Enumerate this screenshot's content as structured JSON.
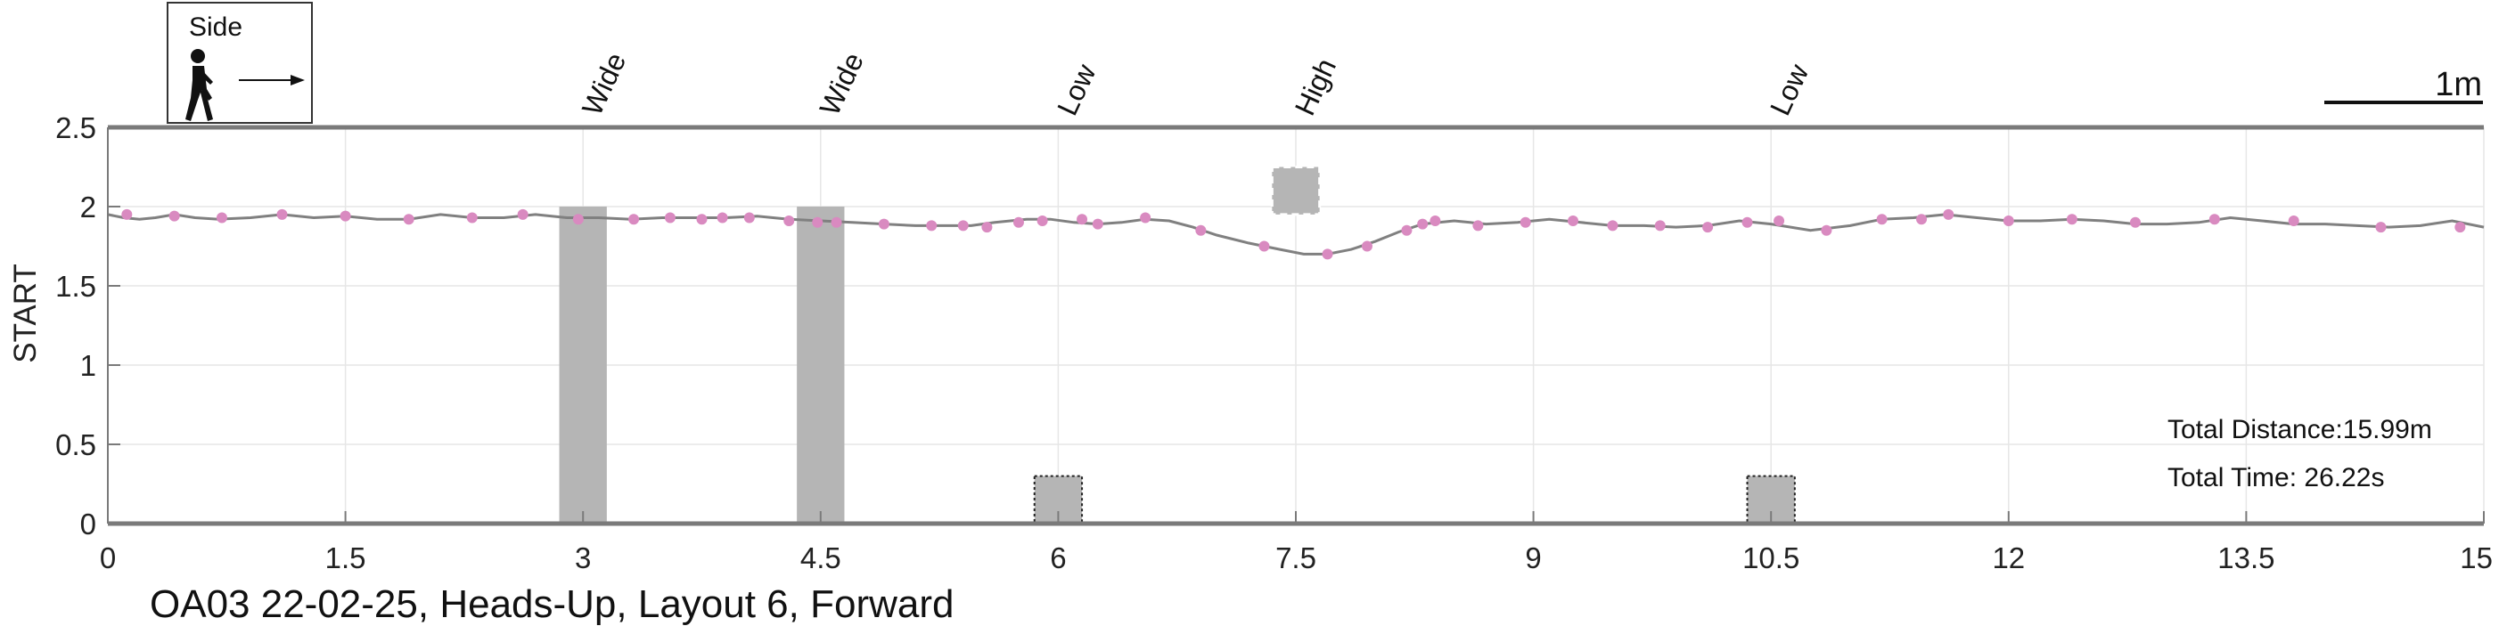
{
  "chart_data": {
    "type": "line",
    "caption": "OA03 22-02-25, Heads-Up, Layout 6, Forward",
    "ylabel": "START",
    "xlim": [
      0,
      15
    ],
    "ylim": [
      0,
      2.5
    ],
    "xticks": [
      0,
      1.5,
      3,
      4.5,
      6,
      7.5,
      9,
      10.5,
      12,
      13.5,
      15
    ],
    "yticks": [
      0,
      0.5,
      1,
      1.5,
      2,
      2.5
    ],
    "xtick_labels": [
      "0",
      "1.5",
      "3",
      "4.5",
      "6",
      "7.5",
      "9",
      "10.5",
      "12",
      "13.5",
      "15"
    ],
    "ytick_labels": [
      "0",
      "0.5",
      "1",
      "1.5",
      "2",
      "2.5"
    ],
    "grid": true,
    "legend": {
      "title": "Side",
      "icon": "pedestrian-walking-icon",
      "position": "top-left"
    },
    "scale_bar_label": "1m",
    "info": {
      "total_distance": "Total Distance:15.99m",
      "total_time": "Total Time: 26.22s"
    },
    "colors": {
      "path": "#808080",
      "markers": "#d98ac0",
      "obstacle": "#b5b5b5",
      "axis": "#7a7a7a",
      "grid": "#e6e6e6"
    },
    "obstacles": [
      {
        "label": "Wide",
        "x": [
          2.85,
          3.15
        ],
        "y": [
          0,
          2.0
        ],
        "style": "solid"
      },
      {
        "label": "Wide",
        "x": [
          4.35,
          4.65
        ],
        "y": [
          0,
          2.0
        ],
        "style": "solid"
      },
      {
        "label": "Low",
        "x": [
          5.85,
          6.15
        ],
        "y": [
          0,
          0.3
        ],
        "style": "dotted"
      },
      {
        "label": "High",
        "x": [
          7.35,
          7.65
        ],
        "y": [
          1.95,
          2.25
        ],
        "style": "dashed"
      },
      {
        "label": "Low",
        "x": [
          10.35,
          10.65
        ],
        "y": [
          0,
          0.3
        ],
        "style": "dotted"
      }
    ],
    "path": [
      [
        0.0,
        1.95
      ],
      [
        0.1,
        1.93
      ],
      [
        0.2,
        1.92
      ],
      [
        0.3,
        1.93
      ],
      [
        0.42,
        1.95
      ],
      [
        0.55,
        1.93
      ],
      [
        0.7,
        1.92
      ],
      [
        0.9,
        1.93
      ],
      [
        1.1,
        1.95
      ],
      [
        1.3,
        1.93
      ],
      [
        1.5,
        1.94
      ],
      [
        1.7,
        1.92
      ],
      [
        1.9,
        1.92
      ],
      [
        2.1,
        1.95
      ],
      [
        2.3,
        1.93
      ],
      [
        2.5,
        1.93
      ],
      [
        2.7,
        1.95
      ],
      [
        2.9,
        1.93
      ],
      [
        3.1,
        1.93
      ],
      [
        3.3,
        1.92
      ],
      [
        3.5,
        1.93
      ],
      [
        3.7,
        1.93
      ],
      [
        3.9,
        1.93
      ],
      [
        4.1,
        1.94
      ],
      [
        4.3,
        1.92
      ],
      [
        4.5,
        1.91
      ],
      [
        4.7,
        1.9
      ],
      [
        4.9,
        1.89
      ],
      [
        5.1,
        1.88
      ],
      [
        5.3,
        1.88
      ],
      [
        5.45,
        1.88
      ],
      [
        5.6,
        1.9
      ],
      [
        5.8,
        1.92
      ],
      [
        5.95,
        1.92
      ],
      [
        6.1,
        1.9
      ],
      [
        6.25,
        1.89
      ],
      [
        6.4,
        1.9
      ],
      [
        6.55,
        1.92
      ],
      [
        6.7,
        1.91
      ],
      [
        6.85,
        1.87
      ],
      [
        7.0,
        1.82
      ],
      [
        7.2,
        1.77
      ],
      [
        7.4,
        1.73
      ],
      [
        7.55,
        1.7
      ],
      [
        7.7,
        1.7
      ],
      [
        7.85,
        1.73
      ],
      [
        8.0,
        1.78
      ],
      [
        8.15,
        1.84
      ],
      [
        8.3,
        1.89
      ],
      [
        8.5,
        1.91
      ],
      [
        8.7,
        1.89
      ],
      [
        8.9,
        1.9
      ],
      [
        9.1,
        1.92
      ],
      [
        9.3,
        1.9
      ],
      [
        9.5,
        1.88
      ],
      [
        9.7,
        1.88
      ],
      [
        9.9,
        1.87
      ],
      [
        10.1,
        1.88
      ],
      [
        10.3,
        1.91
      ],
      [
        10.5,
        1.89
      ],
      [
        10.75,
        1.85
      ],
      [
        11.0,
        1.88
      ],
      [
        11.2,
        1.92
      ],
      [
        11.4,
        1.93
      ],
      [
        11.6,
        1.95
      ],
      [
        11.8,
        1.93
      ],
      [
        12.0,
        1.91
      ],
      [
        12.2,
        1.91
      ],
      [
        12.4,
        1.92
      ],
      [
        12.6,
        1.91
      ],
      [
        12.8,
        1.89
      ],
      [
        13.0,
        1.89
      ],
      [
        13.2,
        1.9
      ],
      [
        13.4,
        1.93
      ],
      [
        13.6,
        1.91
      ],
      [
        13.8,
        1.89
      ],
      [
        14.0,
        1.89
      ],
      [
        14.2,
        1.88
      ],
      [
        14.4,
        1.87
      ],
      [
        14.6,
        1.88
      ],
      [
        14.8,
        1.91
      ],
      [
        15.0,
        1.87
      ]
    ],
    "markers": [
      [
        0.12,
        1.95
      ],
      [
        0.42,
        1.94
      ],
      [
        0.72,
        1.93
      ],
      [
        1.1,
        1.95
      ],
      [
        1.5,
        1.94
      ],
      [
        1.9,
        1.92
      ],
      [
        2.3,
        1.93
      ],
      [
        2.62,
        1.95
      ],
      [
        2.97,
        1.92
      ],
      [
        3.32,
        1.92
      ],
      [
        3.55,
        1.93
      ],
      [
        3.75,
        1.92
      ],
      [
        3.88,
        1.93
      ],
      [
        4.05,
        1.93
      ],
      [
        4.3,
        1.91
      ],
      [
        4.48,
        1.9
      ],
      [
        4.6,
        1.9
      ],
      [
        4.9,
        1.89
      ],
      [
        5.2,
        1.88
      ],
      [
        5.4,
        1.88
      ],
      [
        5.55,
        1.87
      ],
      [
        5.75,
        1.9
      ],
      [
        5.9,
        1.91
      ],
      [
        6.15,
        1.92
      ],
      [
        6.25,
        1.89
      ],
      [
        6.55,
        1.93
      ],
      [
        6.9,
        1.85
      ],
      [
        7.3,
        1.75
      ],
      [
        7.7,
        1.7
      ],
      [
        7.95,
        1.75
      ],
      [
        8.2,
        1.85
      ],
      [
        8.3,
        1.89
      ],
      [
        8.38,
        1.91
      ],
      [
        8.65,
        1.88
      ],
      [
        8.95,
        1.9
      ],
      [
        9.25,
        1.91
      ],
      [
        9.5,
        1.88
      ],
      [
        9.8,
        1.88
      ],
      [
        10.1,
        1.87
      ],
      [
        10.35,
        1.9
      ],
      [
        10.55,
        1.91
      ],
      [
        10.85,
        1.85
      ],
      [
        11.2,
        1.92
      ],
      [
        11.45,
        1.92
      ],
      [
        11.62,
        1.95
      ],
      [
        12.0,
        1.91
      ],
      [
        12.4,
        1.92
      ],
      [
        12.8,
        1.9
      ],
      [
        13.3,
        1.92
      ],
      [
        13.8,
        1.91
      ],
      [
        14.35,
        1.87
      ],
      [
        14.85,
        1.87
      ]
    ]
  }
}
